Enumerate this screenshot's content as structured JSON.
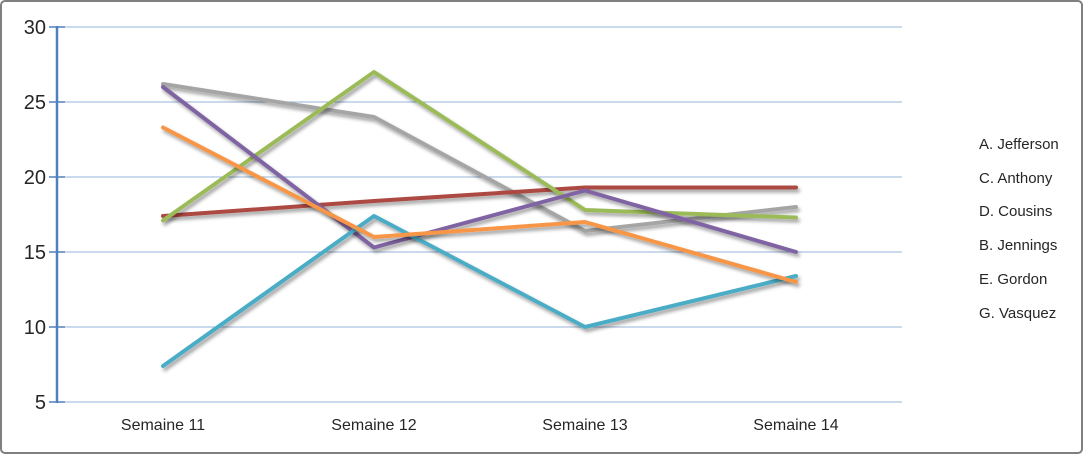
{
  "frame": {
    "border_color": "#7F7F7F",
    "background": "#FFFFFF"
  },
  "chart_data": {
    "type": "line",
    "title": "",
    "xlabel": "",
    "ylabel": "",
    "categories": [
      "Semaine 11",
      "Semaine 12",
      "Semaine 13",
      "Semaine 14"
    ],
    "series": [
      {
        "name": "A. Jefferson",
        "color": "#A5A5A5",
        "values": [
          26.2,
          24,
          16.4,
          18
        ]
      },
      {
        "name": "C. Anthony",
        "color": "#AC4842",
        "values": [
          17.4,
          18.4,
          19.3,
          19.3
        ]
      },
      {
        "name": "D. Cousins",
        "color": "#9BBB59",
        "values": [
          17.1,
          27,
          17.8,
          17.3
        ]
      },
      {
        "name": "B. Jennings",
        "color": "#8064A2",
        "values": [
          26,
          15.3,
          19.1,
          15
        ]
      },
      {
        "name": "E. Gordon",
        "color": "#4BACC6",
        "values": [
          7.4,
          17.4,
          10,
          13.4
        ]
      },
      {
        "name": "G. Vasquez",
        "color": "#F79646",
        "values": [
          23.3,
          16,
          17,
          13
        ]
      }
    ],
    "ylim": [
      5,
      30
    ],
    "ytick_step": 5,
    "yticks": [
      "30",
      "25",
      "20",
      "15",
      "10",
      "5"
    ],
    "grid": true,
    "legend_position": "right",
    "axis_color": "#4F81BD",
    "gridline_color": "#95B3D7",
    "label_color": "#262626",
    "line_shadow": true
  }
}
